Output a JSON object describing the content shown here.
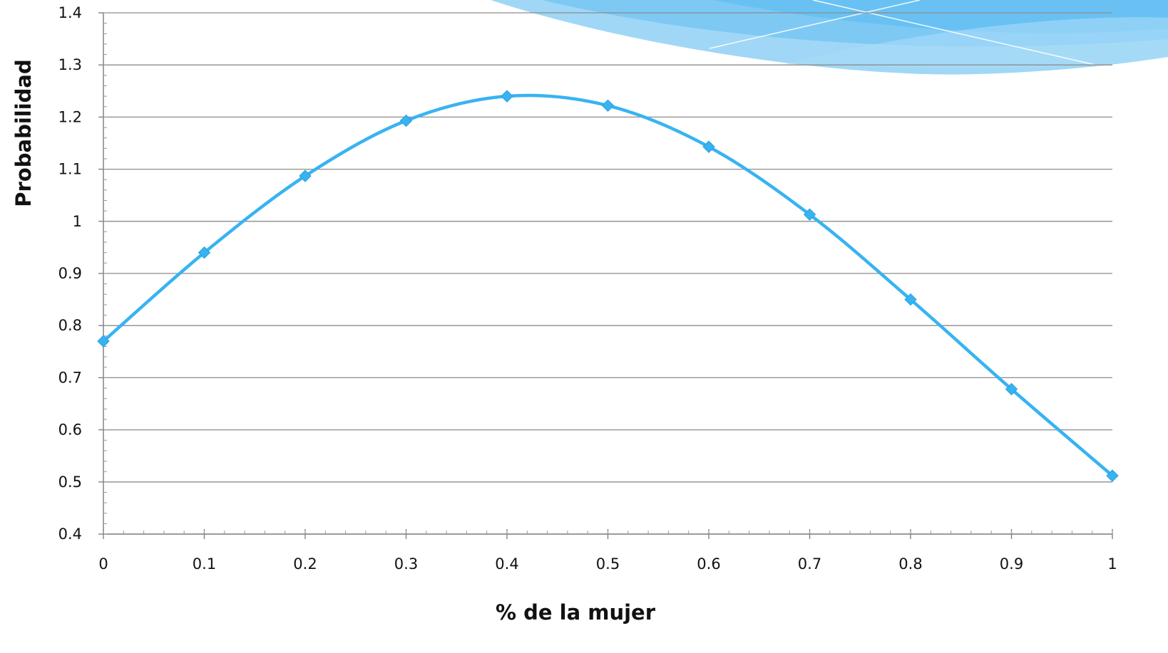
{
  "chart_data": {
    "type": "line",
    "title": "",
    "xlabel": "% de la mujer",
    "ylabel": "Probabilidad",
    "xlim": [
      0,
      1
    ],
    "ylim": [
      0.4,
      1.4
    ],
    "x_ticks": [
      "0",
      "0.1",
      "0.2",
      "0.3",
      "0.4",
      "0.5",
      "0.6",
      "0.7",
      "0.8",
      "0.9",
      "1"
    ],
    "y_ticks": [
      "0.4",
      "0.5",
      "0.6",
      "0.7",
      "0.8",
      "0.9",
      "1",
      "1.1",
      "1.2",
      "1.3",
      "1.4"
    ],
    "x": [
      0,
      0.1,
      0.2,
      0.3,
      0.4,
      0.5,
      0.6,
      0.7,
      0.8,
      0.9,
      1
    ],
    "series": [
      {
        "values": [
          0.77,
          0.94,
          1.087,
          1.193,
          1.24,
          1.222,
          1.143,
          1.013,
          0.85,
          0.678,
          0.512
        ]
      }
    ],
    "grid": true,
    "line_color": "#38b3f2",
    "marker": "diamond",
    "smooth": true
  }
}
